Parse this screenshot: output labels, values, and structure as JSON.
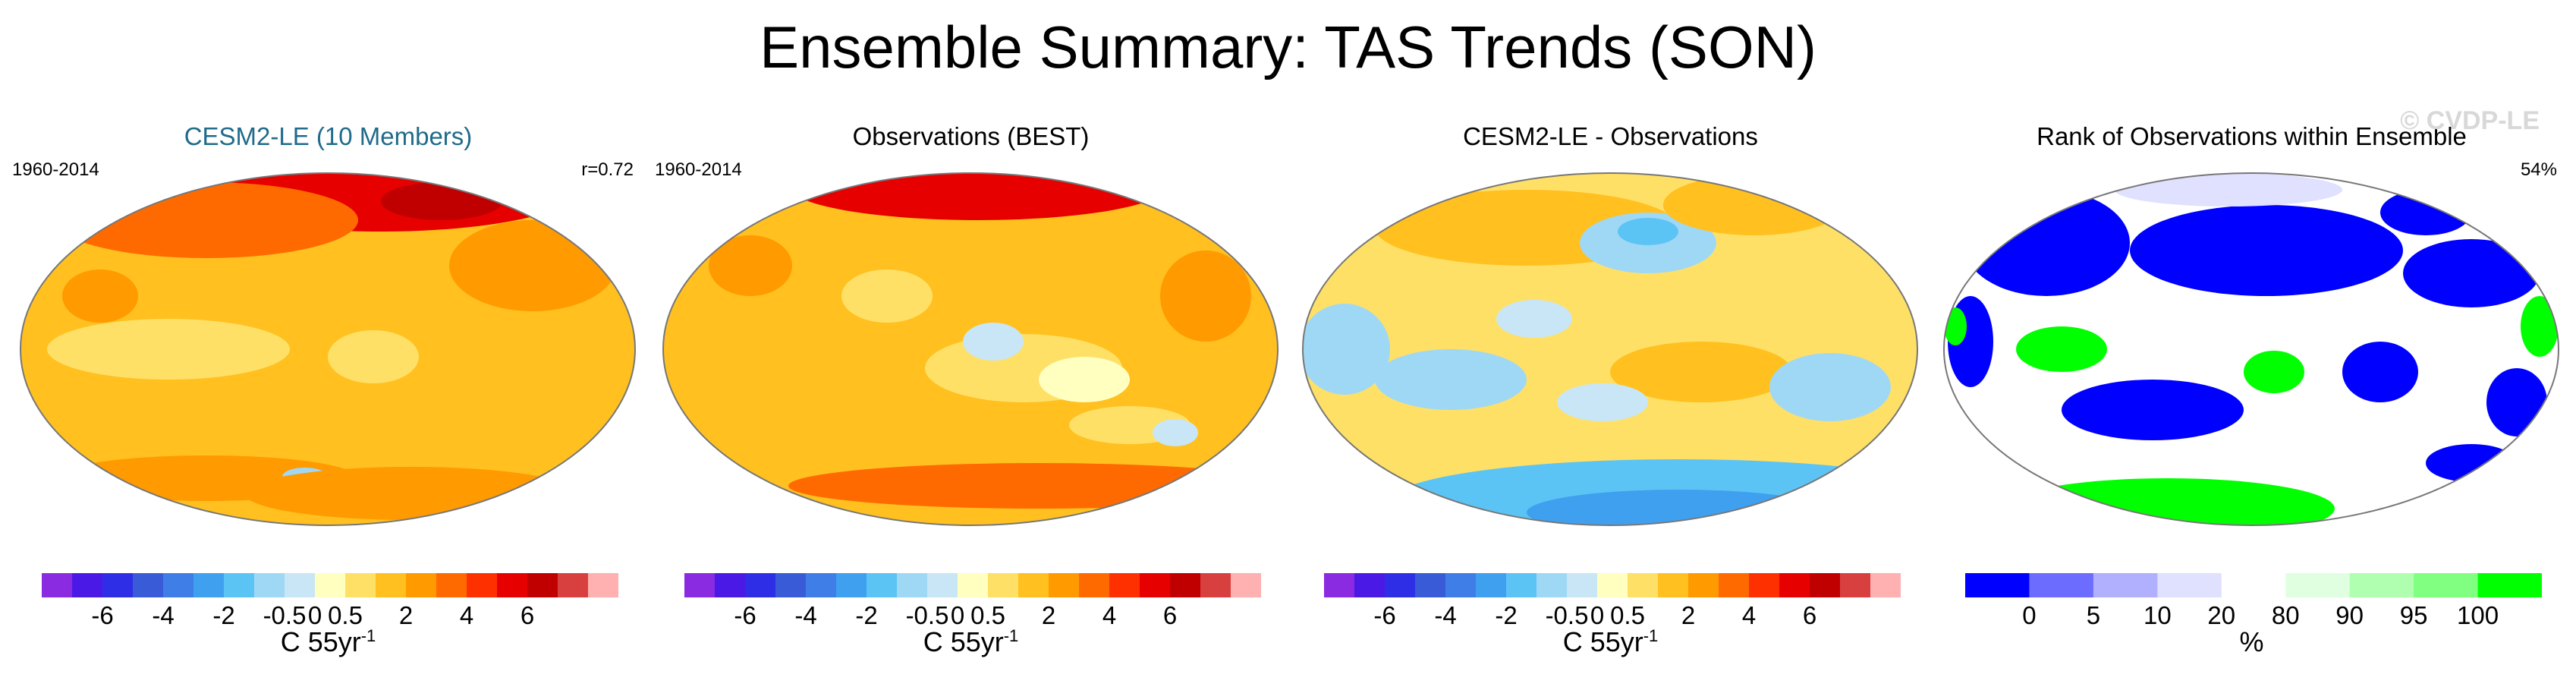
{
  "figure": {
    "title": "Ensemble Summary: TAS Trends (SON)",
    "watermark": "© CVDP-LE"
  },
  "panels": [
    {
      "title": "CESM2-LE (10 Members)",
      "period": "1960-2014",
      "stat": "r=0.72",
      "title_color": "#1f6b8a"
    },
    {
      "title": "Observations (BEST)",
      "period": "1960-2014",
      "stat": ""
    },
    {
      "title": "CESM2-LE - Observations",
      "period": "",
      "stat": ""
    },
    {
      "title": "Rank of Observations within Ensemble",
      "period": "",
      "stat": "54%"
    }
  ],
  "trend_colorbar": {
    "colors": [
      "#8a2be2",
      "#4b19e6",
      "#2e2ee6",
      "#3a5bd8",
      "#3f7ee6",
      "#3fa0f0",
      "#5cc4f5",
      "#9fd8f5",
      "#c8e6f5",
      "#ffffc0",
      "#ffe066",
      "#ffc020",
      "#ff9a00",
      "#ff6a00",
      "#ff3000",
      "#e60000",
      "#c00000",
      "#d84040",
      "#ffb0b0"
    ],
    "labels": [
      "-6",
      "-4",
      "-2",
      "-0.5",
      "0",
      "0.5",
      "2",
      "4",
      "6"
    ],
    "label_positions": [
      2,
      4,
      6,
      8,
      9,
      10,
      12,
      14,
      16
    ],
    "unit_text": "C 55yr",
    "unit_exp": "-1"
  },
  "rank_colorbar": {
    "colors": [
      "#0000ff",
      "#6c6cff",
      "#b0b0ff",
      "#e0e0ff",
      "#ffffff",
      "#e0ffe0",
      "#b0ffb0",
      "#80ff80",
      "#00ff00"
    ],
    "labels": [
      "0",
      "5",
      "10",
      "20",
      "80",
      "90",
      "95",
      "100"
    ],
    "label_positions": [
      1,
      2,
      3,
      4,
      5,
      6,
      7,
      8
    ],
    "unit_text": "%"
  }
}
